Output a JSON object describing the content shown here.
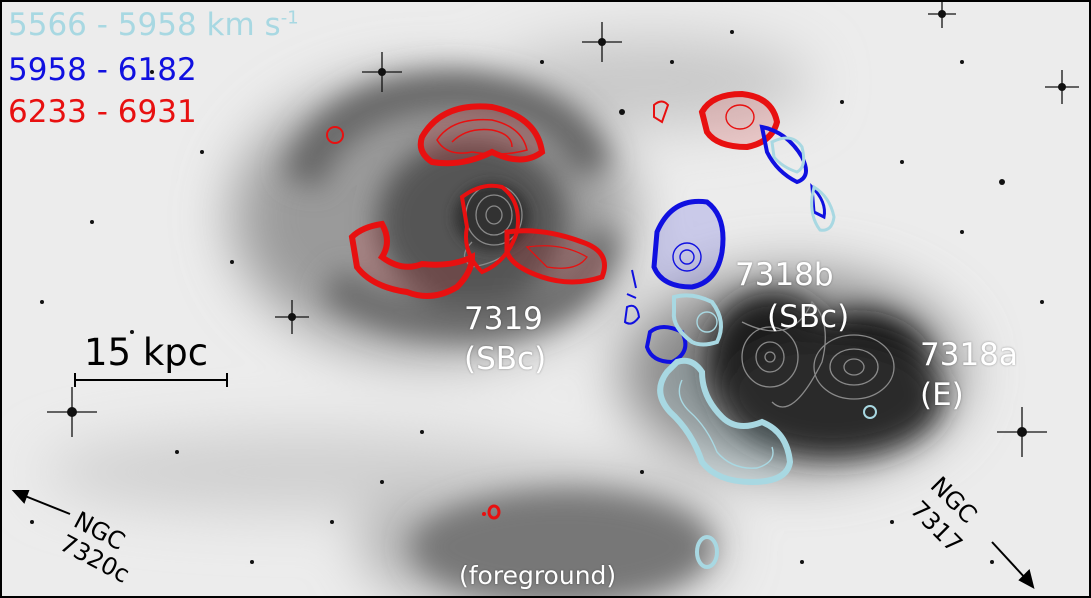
{
  "legend": {
    "items": [
      {
        "text": "5566 - 5958 km s",
        "sup": "-1",
        "color": "#a8d8e2"
      },
      {
        "text": "5958 - 6182",
        "color": "#1010e0"
      },
      {
        "text": "6233 - 6931",
        "color": "#e81010"
      }
    ]
  },
  "labels": {
    "ngc7319_name": "7319",
    "ngc7319_type": "(SBc)",
    "ngc7318b_name": "7318b",
    "ngc7318b_type": "(SBc)",
    "ngc7318a_name": "7318a",
    "ngc7318a_type": "(E)",
    "foreground": "(foreground)",
    "scale_bar": "15 kpc",
    "ngc7320c_line1": "NGC",
    "ngc7320c_line2": "7320c",
    "ngc7317_line1": "NGC",
    "ngc7317_line2": "7317"
  },
  "colors": {
    "grey_contour": "#8a8a8a"
  }
}
